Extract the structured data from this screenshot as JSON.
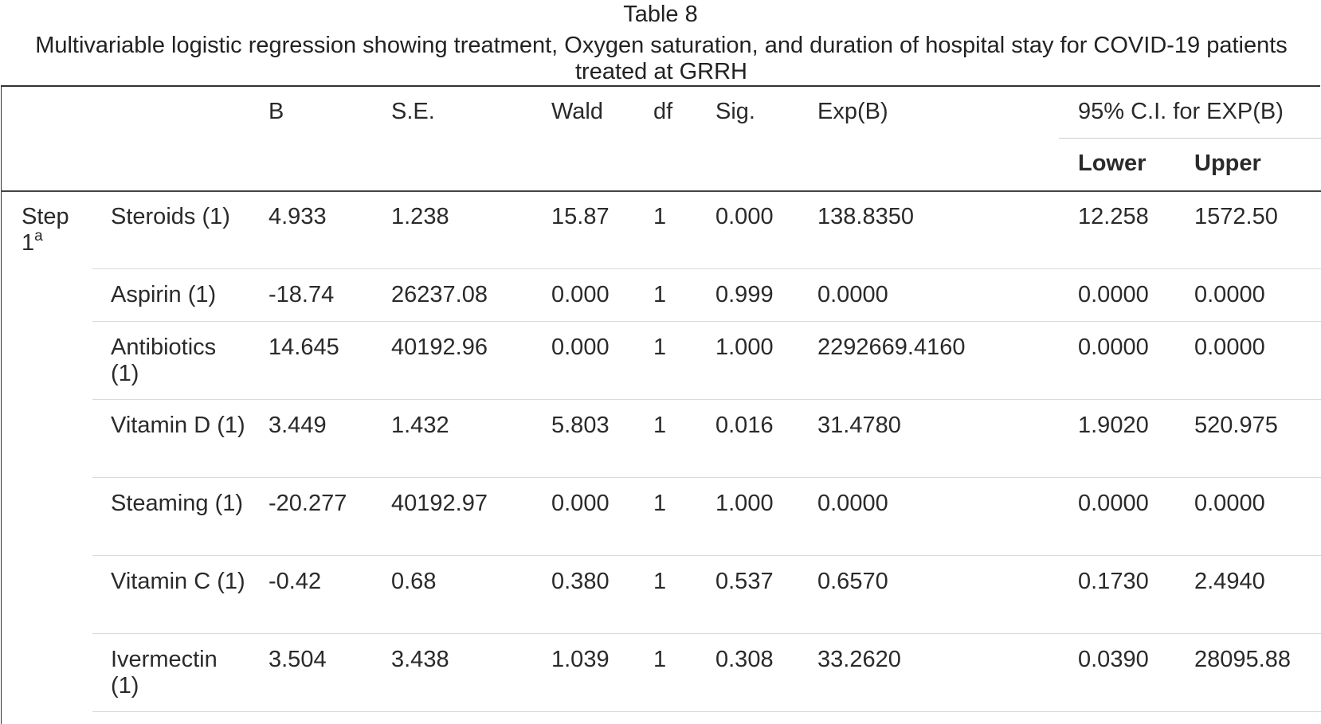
{
  "caption": {
    "number": "Table 8",
    "description": "Multivariable logistic regression showing treatment, Oxygen saturation, and duration of hospital stay for COVID-19 patients treated at GRRH"
  },
  "header": {
    "b": "B",
    "se": "S.E.",
    "wald": "Wald",
    "df": "df",
    "sig": "Sig.",
    "expb": "Exp(B)",
    "ci": "95% C.I. for EXP(B)",
    "lower": "Lower",
    "upper": "Upper"
  },
  "step": {
    "label": "Step",
    "num": "1",
    "sup": "a"
  },
  "rows": [
    {
      "variable": "Steroids (1)",
      "b": "4.933",
      "se": "1.238",
      "wald": "15.87",
      "df": "1",
      "sig": "0.000",
      "expb": "138.8350",
      "lower": "12.258",
      "upper": "1572.50"
    },
    {
      "variable": "Aspirin (1)",
      "b": "-18.74",
      "se": "26237.08",
      "wald": "0.000",
      "df": "1",
      "sig": "0.999",
      "expb": "0.0000",
      "lower": "0.0000",
      "upper": "0.0000"
    },
    {
      "variable": "Antibiotics (1)",
      "b": "14.645",
      "se": "40192.96",
      "wald": "0.000",
      "df": "1",
      "sig": "1.000",
      "expb": "2292669.4160",
      "lower": "0.0000",
      "upper": "0.0000"
    },
    {
      "variable": "Vitamin D (1)",
      "b": "3.449",
      "se": "1.432",
      "wald": "5.803",
      "df": "1",
      "sig": "0.016",
      "expb": "31.4780",
      "lower": "1.9020",
      "upper": "520.975"
    },
    {
      "variable": "Steaming (1)",
      "b": "-20.277",
      "se": "40192.97",
      "wald": "0.000",
      "df": "1",
      "sig": "1.000",
      "expb": "0.0000",
      "lower": "0.0000",
      "upper": "0.0000"
    },
    {
      "variable": "Vitamin C (1)",
      "b": "-0.42",
      "se": "0.68",
      "wald": "0.380",
      "df": "1",
      "sig": "0.537",
      "expb": "0.6570",
      "lower": "0.1730",
      "upper": "2.4940"
    },
    {
      "variable": "Ivermectin (1)",
      "b": "3.504",
      "se": "3.438",
      "wald": "1.039",
      "df": "1",
      "sig": "0.308",
      "expb": "33.2620",
      "lower": "0.0390",
      "upper": "28095.88"
    }
  ]
}
